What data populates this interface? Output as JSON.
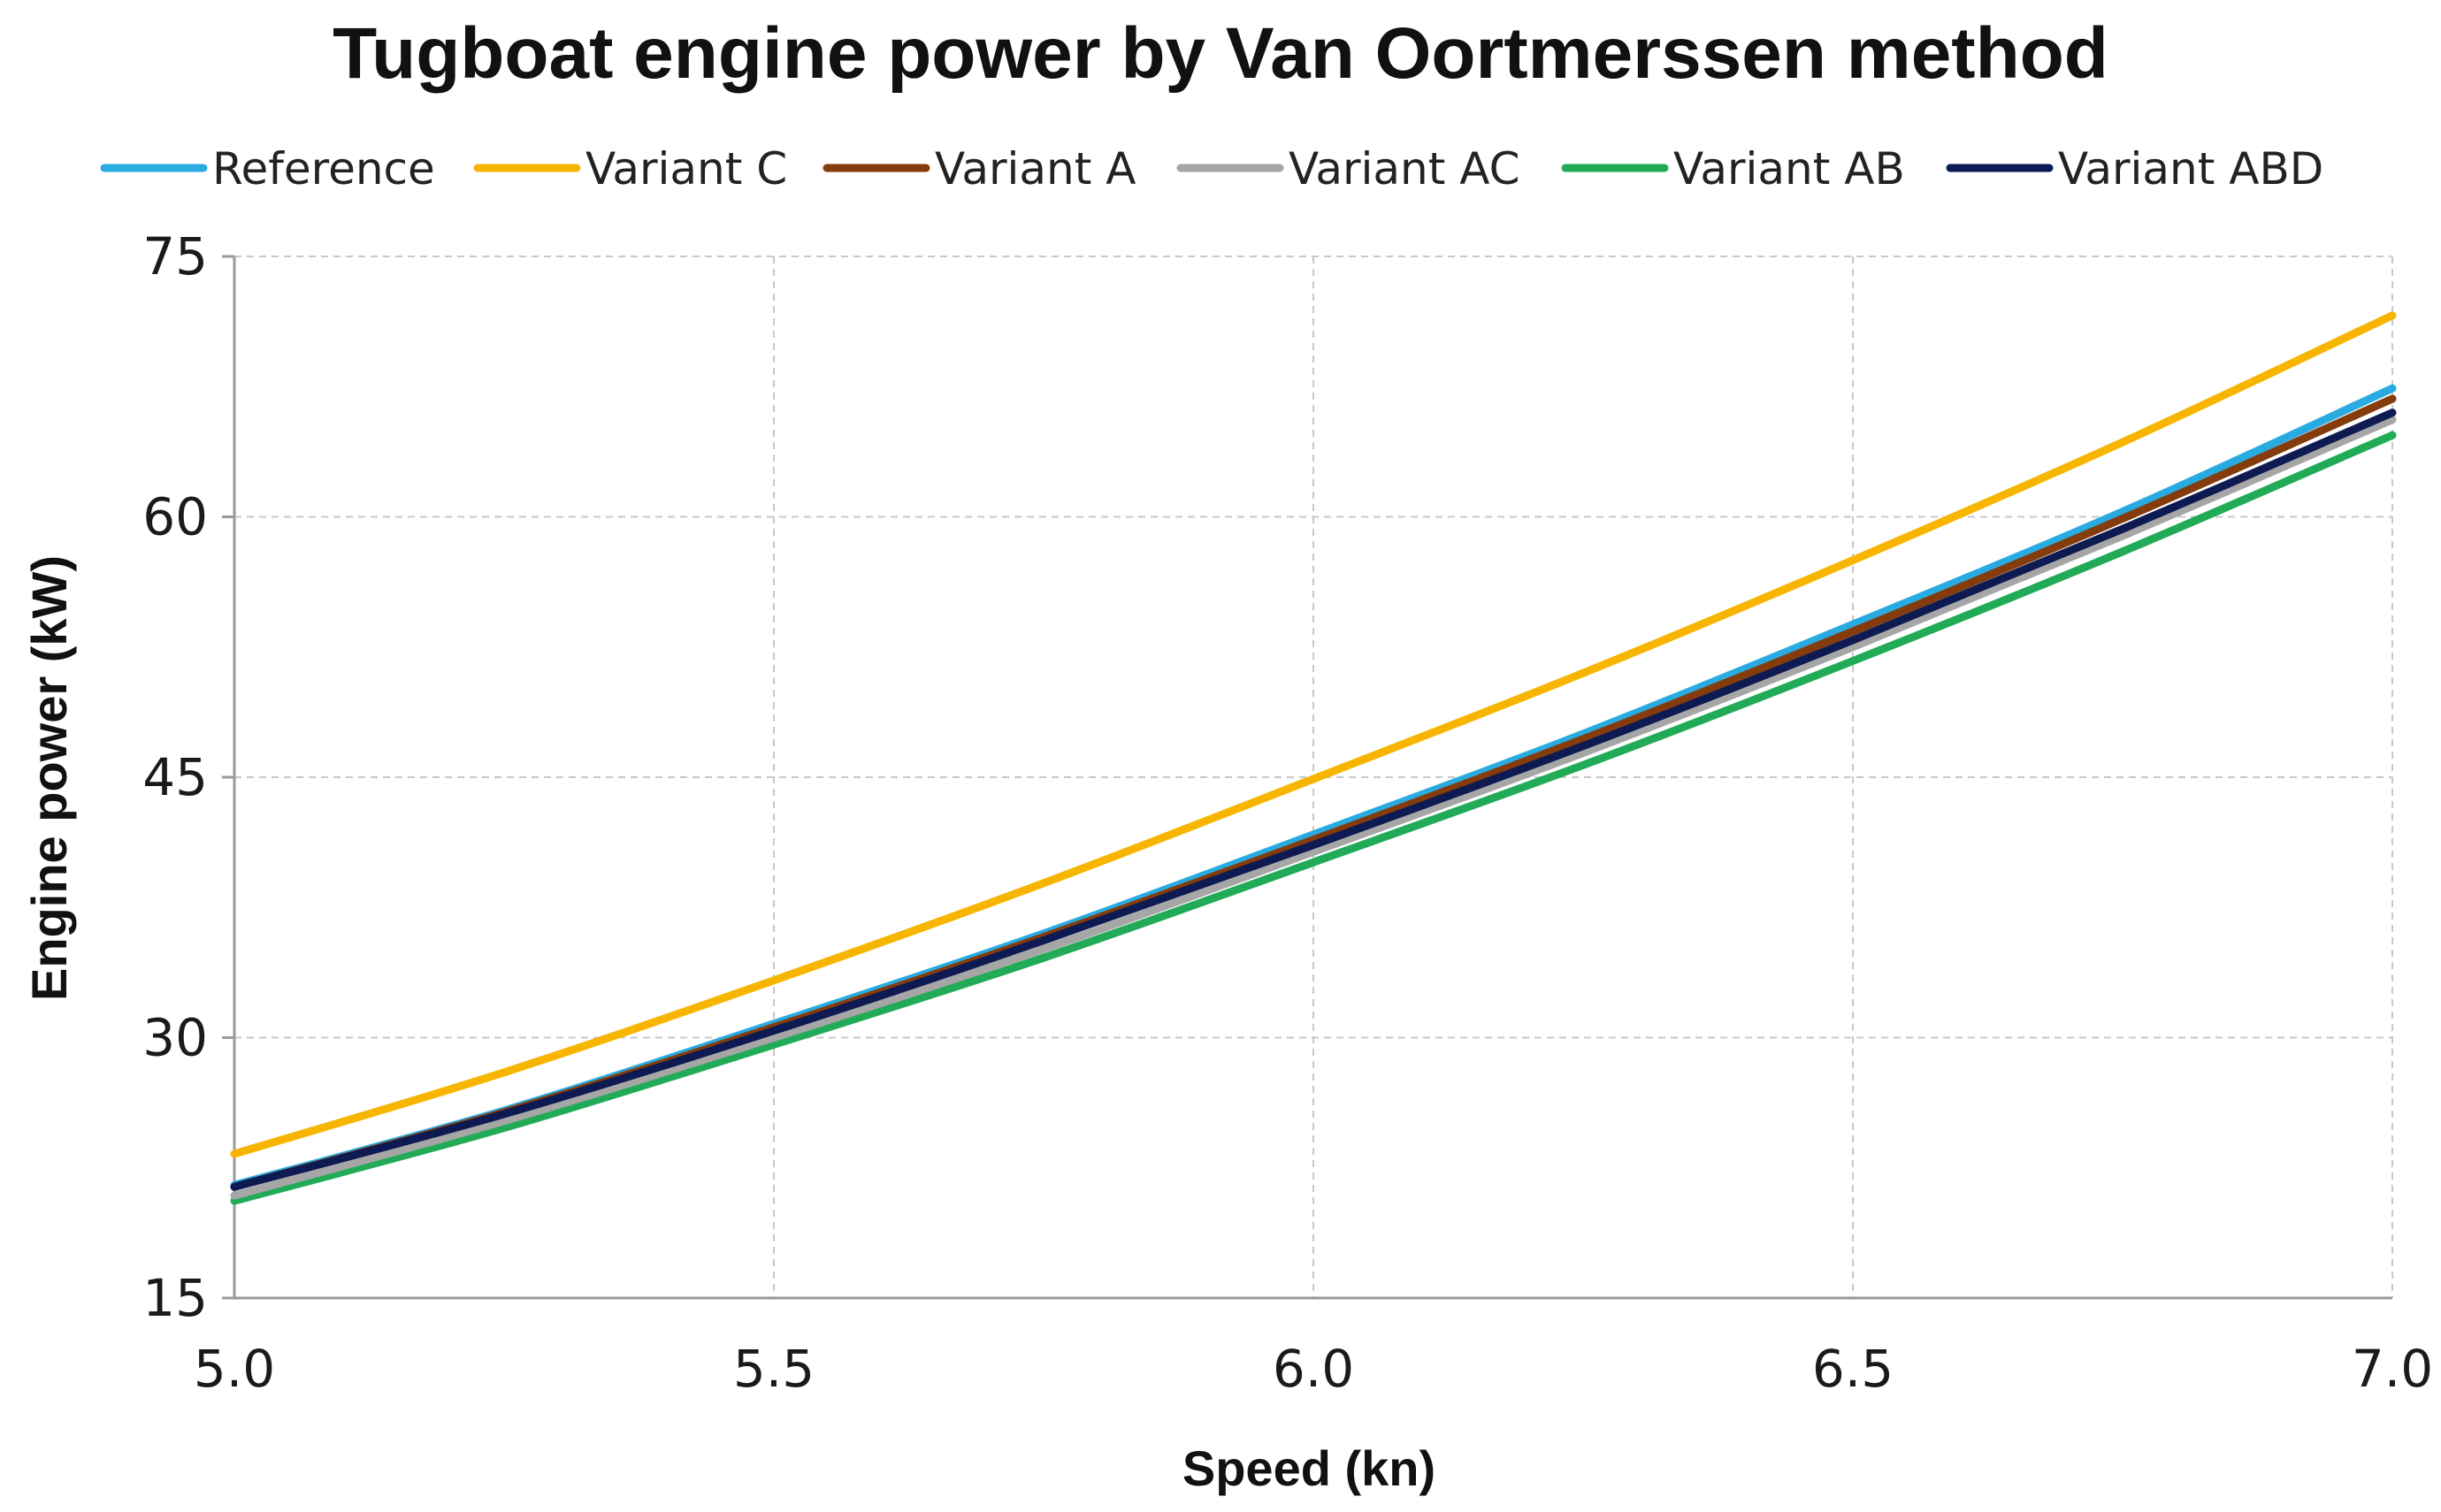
{
  "chart_data": {
    "type": "line",
    "title": "Tugboat engine power by Van Oortmerssen method",
    "xlabel": "Speed (kn)",
    "ylabel": "Engine power (kW)",
    "xlim": [
      5.0,
      7.0
    ],
    "ylim": [
      15,
      75
    ],
    "xticks": [
      "5.0",
      "5.5",
      "6.0",
      "6.5",
      "7.0"
    ],
    "yticks": [
      "15",
      "30",
      "45",
      "60",
      "75"
    ],
    "grid": true,
    "legend_position": "top",
    "x": [
      5.0,
      5.25,
      5.5,
      5.75,
      6.0,
      6.25,
      6.5,
      6.75,
      7.0
    ],
    "series": [
      {
        "name": "Reference",
        "color": "#29ABE2",
        "values": [
          21.5,
          25.8,
          30.8,
          36.0,
          41.7,
          47.5,
          53.8,
          60.3,
          67.4
        ]
      },
      {
        "name": "Variant C",
        "color": "#F7B500",
        "values": [
          23.3,
          28.0,
          33.3,
          38.9,
          44.9,
          51.0,
          57.5,
          64.3,
          71.6
        ]
      },
      {
        "name": "Variant A",
        "color": "#843C0C",
        "values": [
          21.4,
          25.7,
          30.6,
          35.8,
          41.4,
          47.2,
          53.4,
          59.9,
          66.8
        ]
      },
      {
        "name": "Variant AC",
        "color": "#A6A6A6",
        "values": [
          20.9,
          25.2,
          30.0,
          35.1,
          40.7,
          46.4,
          52.5,
          58.9,
          65.6
        ]
      },
      {
        "name": "Variant AB",
        "color": "#21AB57",
        "values": [
          20.6,
          24.8,
          29.6,
          34.6,
          40.1,
          45.7,
          51.7,
          58.0,
          64.7
        ]
      },
      {
        "name": "Variant ABD",
        "color": "#0E1A52",
        "values": [
          21.4,
          25.6,
          30.4,
          35.6,
          41.1,
          46.8,
          52.9,
          59.3,
          66.0
        ]
      }
    ]
  }
}
